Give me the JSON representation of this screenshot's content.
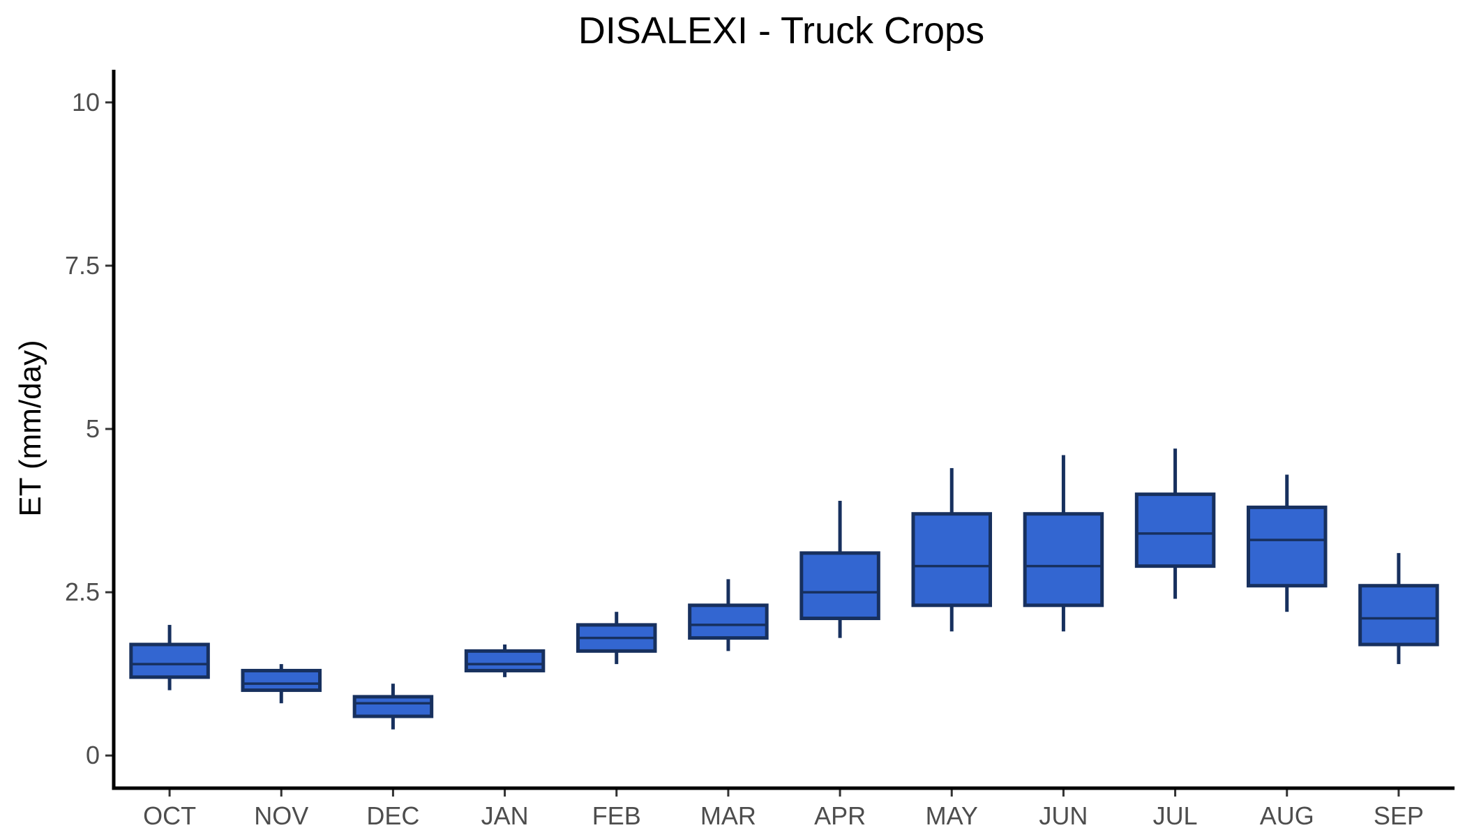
{
  "chart_data": {
    "type": "box",
    "title": "DISALEXI - Truck Crops",
    "xlabel": "",
    "ylabel": "ET (mm/day)",
    "ylim": [
      -0.5,
      10.5
    ],
    "y_ticks": [
      0,
      2.5,
      5,
      7.5,
      10
    ],
    "y_tick_labels": [
      "0",
      "2.5",
      "5",
      "7.5",
      "10"
    ],
    "grid": false,
    "legend": "none",
    "colors": {
      "box_fill": "#3366d1",
      "box_stroke": "#17305e",
      "axis": "#000000",
      "tick_text": "#4d4d4d"
    },
    "categories": [
      "OCT",
      "NOV",
      "DEC",
      "JAN",
      "FEB",
      "MAR",
      "APR",
      "MAY",
      "JUN",
      "JUL",
      "AUG",
      "SEP"
    ],
    "boxes": [
      {
        "min": 1.0,
        "q1": 1.2,
        "median": 1.4,
        "q3": 1.7,
        "max": 2.0
      },
      {
        "min": 0.8,
        "q1": 1.0,
        "median": 1.1,
        "q3": 1.3,
        "max": 1.4
      },
      {
        "min": 0.4,
        "q1": 0.6,
        "median": 0.8,
        "q3": 0.9,
        "max": 1.1
      },
      {
        "min": 1.2,
        "q1": 1.3,
        "median": 1.4,
        "q3": 1.6,
        "max": 1.7
      },
      {
        "min": 1.4,
        "q1": 1.6,
        "median": 1.8,
        "q3": 2.0,
        "max": 2.2
      },
      {
        "min": 1.6,
        "q1": 1.8,
        "median": 2.0,
        "q3": 2.3,
        "max": 2.7
      },
      {
        "min": 1.8,
        "q1": 2.1,
        "median": 2.5,
        "q3": 3.1,
        "max": 3.9
      },
      {
        "min": 1.9,
        "q1": 2.3,
        "median": 2.9,
        "q3": 3.7,
        "max": 4.4
      },
      {
        "min": 1.9,
        "q1": 2.3,
        "median": 2.9,
        "q3": 3.7,
        "max": 4.6
      },
      {
        "min": 2.4,
        "q1": 2.9,
        "median": 3.4,
        "q3": 4.0,
        "max": 4.7
      },
      {
        "min": 2.2,
        "q1": 2.6,
        "median": 3.3,
        "q3": 3.8,
        "max": 4.3
      },
      {
        "min": 1.4,
        "q1": 1.7,
        "median": 2.1,
        "q3": 2.6,
        "max": 3.1
      }
    ]
  }
}
